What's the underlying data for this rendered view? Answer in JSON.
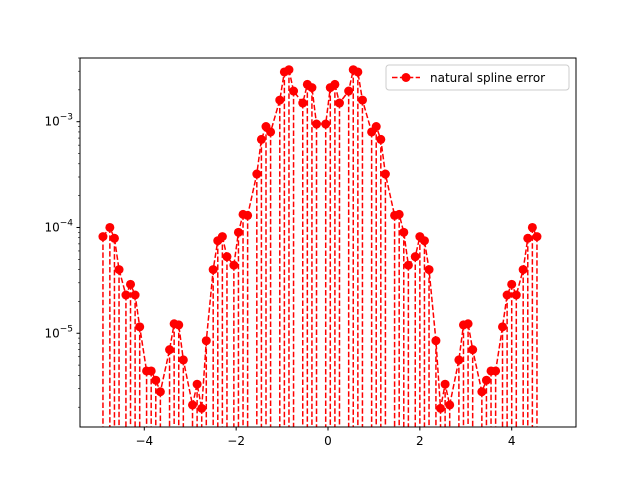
{
  "chart_data": {
    "type": "line",
    "title": "",
    "xlabel": "",
    "ylabel": "",
    "xscale": "linear",
    "yscale": "log",
    "xlim": [
      -5.4,
      5.4
    ],
    "ylim": [
      1.3e-06,
      0.004
    ],
    "grid": false,
    "legend": "upper-right",
    "x_ticks": [
      {
        "value": -4,
        "label": "−4"
      },
      {
        "value": -2,
        "label": "−2"
      },
      {
        "value": 0,
        "label": "0"
      },
      {
        "value": 2,
        "label": "2"
      },
      {
        "value": 4,
        "label": "4"
      }
    ],
    "y_ticks": [
      {
        "value": 1e-05,
        "base": "10",
        "exp": "−5"
      },
      {
        "value": 0.0001,
        "base": "10",
        "exp": "−4"
      },
      {
        "value": 0.001,
        "base": "10",
        "exp": "−3"
      }
    ],
    "series": [
      {
        "name": "natural spline error",
        "color": "#ff0000",
        "line_style": "dashed",
        "marker": "circle",
        "drop_lines": true,
        "points": [
          [
            -4.9,
            8.2e-05
          ],
          [
            -4.75,
            0.0001
          ],
          [
            -4.65,
            7.9e-05
          ],
          [
            -4.55,
            4e-05
          ],
          [
            -4.4,
            2.3e-05
          ],
          [
            -4.3,
            2.9e-05
          ],
          [
            -4.2,
            2.3e-05
          ],
          [
            -4.1,
            1.15e-05
          ],
          [
            -3.95,
            4.4e-06
          ],
          [
            -3.85,
            4.4e-06
          ],
          [
            -3.75,
            3.6e-06
          ],
          [
            -3.65,
            2.8e-06
          ],
          [
            -3.45,
            7e-06
          ],
          [
            -3.35,
            1.23e-05
          ],
          [
            -3.25,
            1.2e-05
          ],
          [
            -3.15,
            5.6e-06
          ],
          [
            -2.95,
            2.1e-06
          ],
          [
            -2.85,
            3.3e-06
          ],
          [
            -2.75,
            1.95e-06
          ],
          [
            -2.65,
            8.5e-06
          ],
          [
            -2.5,
            4e-05
          ],
          [
            -2.4,
            7.5e-05
          ],
          [
            -2.3,
            8.2e-05
          ],
          [
            -2.2,
            5.3e-05
          ],
          [
            -2.05,
            4.4e-05
          ],
          [
            -1.95,
            9e-05
          ],
          [
            -1.85,
            0.000133
          ],
          [
            -1.75,
            0.00013
          ],
          [
            -1.55,
            0.00032
          ],
          [
            -1.45,
            0.00068
          ],
          [
            -1.35,
            0.0009
          ],
          [
            -1.25,
            0.0008
          ],
          [
            -1.05,
            0.0016
          ],
          [
            -0.95,
            0.00295
          ],
          [
            -0.85,
            0.0031
          ],
          [
            -0.75,
            0.00195
          ],
          [
            -0.55,
            0.0015
          ],
          [
            -0.45,
            0.00225
          ],
          [
            -0.35,
            0.0021
          ],
          [
            -0.25,
            0.00095
          ],
          [
            -0.05,
            0.00095
          ],
          [
            0.05,
            0.0021
          ],
          [
            0.15,
            0.00225
          ],
          [
            0.25,
            0.0015
          ],
          [
            0.45,
            0.00195
          ],
          [
            0.55,
            0.0031
          ],
          [
            0.65,
            0.00295
          ],
          [
            0.75,
            0.0016
          ],
          [
            0.95,
            0.0008
          ],
          [
            1.05,
            0.0009
          ],
          [
            1.15,
            0.00068
          ],
          [
            1.25,
            0.00032
          ],
          [
            1.45,
            0.00013
          ],
          [
            1.55,
            0.000133
          ],
          [
            1.65,
            9e-05
          ],
          [
            1.75,
            4.4e-05
          ],
          [
            1.9,
            5.3e-05
          ],
          [
            2.0,
            8.2e-05
          ],
          [
            2.1,
            7.5e-05
          ],
          [
            2.2,
            4e-05
          ],
          [
            2.35,
            8.5e-06
          ],
          [
            2.45,
            1.95e-06
          ],
          [
            2.55,
            3.3e-06
          ],
          [
            2.65,
            2.1e-06
          ],
          [
            2.85,
            5.6e-06
          ],
          [
            2.95,
            1.2e-05
          ],
          [
            3.05,
            1.23e-05
          ],
          [
            3.15,
            7e-06
          ],
          [
            3.35,
            2.8e-06
          ],
          [
            3.45,
            3.6e-06
          ],
          [
            3.55,
            4.4e-06
          ],
          [
            3.65,
            4.4e-06
          ],
          [
            3.8,
            1.15e-05
          ],
          [
            3.9,
            2.3e-05
          ],
          [
            4.0,
            2.9e-05
          ],
          [
            4.1,
            2.3e-05
          ],
          [
            4.25,
            4e-05
          ],
          [
            4.35,
            7.9e-05
          ],
          [
            4.45,
            0.0001
          ],
          [
            4.55,
            8.2e-05
          ]
        ]
      }
    ]
  },
  "legend": {
    "label": "natural spline error"
  }
}
